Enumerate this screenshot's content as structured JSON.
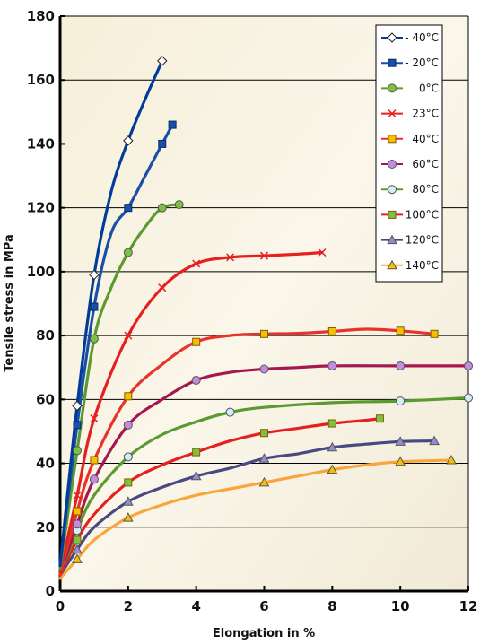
{
  "chart_data": {
    "type": "line",
    "title": "",
    "xlabel": "Elongation in %",
    "ylabel": "Tensile stress in MPa",
    "xlim": [
      0,
      12
    ],
    "ylim": [
      0,
      180
    ],
    "xticks": [
      "0",
      "2",
      "4",
      "6",
      "8",
      "10",
      "12"
    ],
    "yticks": [
      "0",
      "20",
      "40",
      "60",
      "80",
      "100",
      "120",
      "140",
      "160",
      "180"
    ],
    "grid": "horizontal",
    "legend_position": "top-right",
    "series": [
      {
        "name": "- 40°C",
        "color": "#003d99",
        "marker": "diamond",
        "marker_fill": "#ffffff",
        "points": [
          [
            0,
            8
          ],
          [
            0.5,
            58
          ],
          [
            1,
            99
          ],
          [
            1.5,
            125
          ],
          [
            2,
            141
          ],
          [
            2.5,
            154
          ],
          [
            3,
            166
          ]
        ],
        "marked": [
          [
            0.5,
            58
          ],
          [
            1,
            99
          ],
          [
            2,
            141
          ],
          [
            3,
            166
          ]
        ]
      },
      {
        "name": "- 20°C",
        "color": "#1a4fa8",
        "marker": "square",
        "marker_fill": "#1a4fa8",
        "points": [
          [
            0,
            8
          ],
          [
            0.5,
            52
          ],
          [
            1,
            89
          ],
          [
            1.5,
            112
          ],
          [
            2,
            120
          ],
          [
            2.5,
            130
          ],
          [
            3,
            140
          ],
          [
            3.3,
            146
          ]
        ],
        "marked": [
          [
            0.5,
            52
          ],
          [
            1,
            89
          ],
          [
            2,
            120
          ],
          [
            3,
            140
          ],
          [
            3.3,
            146
          ]
        ]
      },
      {
        "name": "0°C",
        "color": "#5a9a2e",
        "marker": "circle",
        "marker_fill": "#7cc242",
        "points": [
          [
            0,
            7
          ],
          [
            0.5,
            44
          ],
          [
            1,
            79
          ],
          [
            1.5,
            95
          ],
          [
            2,
            106
          ],
          [
            2.5,
            114
          ],
          [
            3,
            120
          ],
          [
            3.5,
            121
          ]
        ],
        "marked": [
          [
            0.5,
            44
          ],
          [
            1,
            79
          ],
          [
            2,
            106
          ],
          [
            3,
            120
          ],
          [
            3.5,
            121
          ]
        ]
      },
      {
        "name": "23°C",
        "color": "#e5201f",
        "marker": "x",
        "marker_fill": "#e5201f",
        "points": [
          [
            0,
            6
          ],
          [
            0.5,
            30
          ],
          [
            1,
            54
          ],
          [
            2,
            80
          ],
          [
            3,
            95
          ],
          [
            4,
            102.5
          ],
          [
            5,
            104.5
          ],
          [
            6,
            105
          ],
          [
            7,
            105.5
          ],
          [
            7.7,
            106
          ]
        ],
        "marked": [
          [
            0.5,
            30
          ],
          [
            1,
            54
          ],
          [
            2,
            80
          ],
          [
            3,
            95
          ],
          [
            4,
            102.5
          ],
          [
            5,
            104.5
          ],
          [
            6,
            105
          ],
          [
            7.7,
            106
          ]
        ]
      },
      {
        "name": "40°C",
        "color": "#e8322a",
        "marker": "square",
        "marker_fill": "#f5c000",
        "points": [
          [
            0,
            5
          ],
          [
            0.5,
            25
          ],
          [
            1,
            41
          ],
          [
            2,
            61
          ],
          [
            3,
            71
          ],
          [
            4,
            78
          ],
          [
            5,
            80
          ],
          [
            6,
            80.5
          ],
          [
            7,
            80.7
          ],
          [
            8,
            81.3
          ],
          [
            9,
            82
          ],
          [
            10,
            81.5
          ],
          [
            11,
            80.5
          ]
        ],
        "marked": [
          [
            0.5,
            25
          ],
          [
            1,
            41
          ],
          [
            2,
            61
          ],
          [
            4,
            78
          ],
          [
            6,
            80.5
          ],
          [
            8,
            81.3
          ],
          [
            10,
            81.5
          ],
          [
            11,
            80.5
          ]
        ]
      },
      {
        "name": "60°C",
        "color": "#a5174f",
        "marker": "circle",
        "marker_fill": "#c48be0",
        "points": [
          [
            0,
            5
          ],
          [
            0.5,
            21
          ],
          [
            1,
            35
          ],
          [
            2,
            52
          ],
          [
            3,
            60
          ],
          [
            4,
            66
          ],
          [
            5,
            68.5
          ],
          [
            6,
            69.5
          ],
          [
            7,
            70
          ],
          [
            8,
            70.5
          ],
          [
            10,
            70.5
          ],
          [
            12,
            70.5
          ]
        ],
        "marked": [
          [
            0.5,
            21
          ],
          [
            1,
            35
          ],
          [
            2,
            52
          ],
          [
            4,
            66
          ],
          [
            6,
            69.5
          ],
          [
            8,
            70.5
          ],
          [
            10,
            70.5
          ],
          [
            12,
            70.5
          ]
        ]
      },
      {
        "name": "80°C",
        "color": "#5a9a2e",
        "marker": "circle",
        "marker_fill": "#cfeef5",
        "points": [
          [
            0,
            5
          ],
          [
            0.5,
            19
          ],
          [
            1,
            30
          ],
          [
            2,
            42
          ],
          [
            3,
            49
          ],
          [
            4,
            53
          ],
          [
            5,
            56
          ],
          [
            6,
            57.5
          ],
          [
            8,
            59
          ],
          [
            10,
            59.5
          ],
          [
            12,
            60.5
          ]
        ],
        "marked": [
          [
            0.5,
            19
          ],
          [
            2,
            42
          ],
          [
            5,
            56
          ],
          [
            10,
            59.5
          ],
          [
            12,
            60.5
          ]
        ]
      },
      {
        "name": "100°C",
        "color": "#e5201f",
        "marker": "square",
        "marker_fill": "#7cc242",
        "points": [
          [
            0,
            5
          ],
          [
            0.5,
            16
          ],
          [
            1,
            24
          ],
          [
            2,
            34
          ],
          [
            3,
            39.5
          ],
          [
            4,
            43.5
          ],
          [
            5,
            47
          ],
          [
            6,
            49.5
          ],
          [
            7,
            51
          ],
          [
            8,
            52.5
          ],
          [
            9,
            53.5
          ],
          [
            9.4,
            54
          ]
        ],
        "marked": [
          [
            0.5,
            16
          ],
          [
            2,
            34
          ],
          [
            4,
            43.5
          ],
          [
            6,
            49.5
          ],
          [
            8,
            52.5
          ],
          [
            9.4,
            54
          ]
        ]
      },
      {
        "name": "120°C",
        "color": "#4a4880",
        "marker": "triangle",
        "marker_fill": "#8f8fcf",
        "points": [
          [
            0,
            5
          ],
          [
            0.5,
            13
          ],
          [
            1,
            20
          ],
          [
            2,
            28
          ],
          [
            3,
            32.5
          ],
          [
            4,
            36
          ],
          [
            5,
            38.5
          ],
          [
            6,
            41.5
          ],
          [
            7,
            43
          ],
          [
            8,
            45
          ],
          [
            9,
            46
          ],
          [
            10,
            46.8
          ],
          [
            11,
            47
          ]
        ],
        "marked": [
          [
            0.5,
            13
          ],
          [
            2,
            28
          ],
          [
            4,
            36
          ],
          [
            6,
            41.5
          ],
          [
            8,
            45
          ],
          [
            10,
            46.8
          ],
          [
            11,
            47
          ]
        ]
      },
      {
        "name": "140°C",
        "color": "#f9a53a",
        "marker": "triangle",
        "marker_fill": "#f5c000",
        "points": [
          [
            0,
            4
          ],
          [
            0.5,
            10
          ],
          [
            1,
            16
          ],
          [
            2,
            23
          ],
          [
            3,
            27
          ],
          [
            4,
            30
          ],
          [
            5,
            32
          ],
          [
            6,
            34
          ],
          [
            7,
            36
          ],
          [
            8,
            38
          ],
          [
            9,
            39.5
          ],
          [
            10,
            40.5
          ],
          [
            11.5,
            41
          ]
        ],
        "marked": [
          [
            0.5,
            10
          ],
          [
            2,
            23
          ],
          [
            6,
            34
          ],
          [
            8,
            38
          ],
          [
            10,
            40.5
          ],
          [
            11.5,
            41
          ]
        ]
      }
    ]
  }
}
